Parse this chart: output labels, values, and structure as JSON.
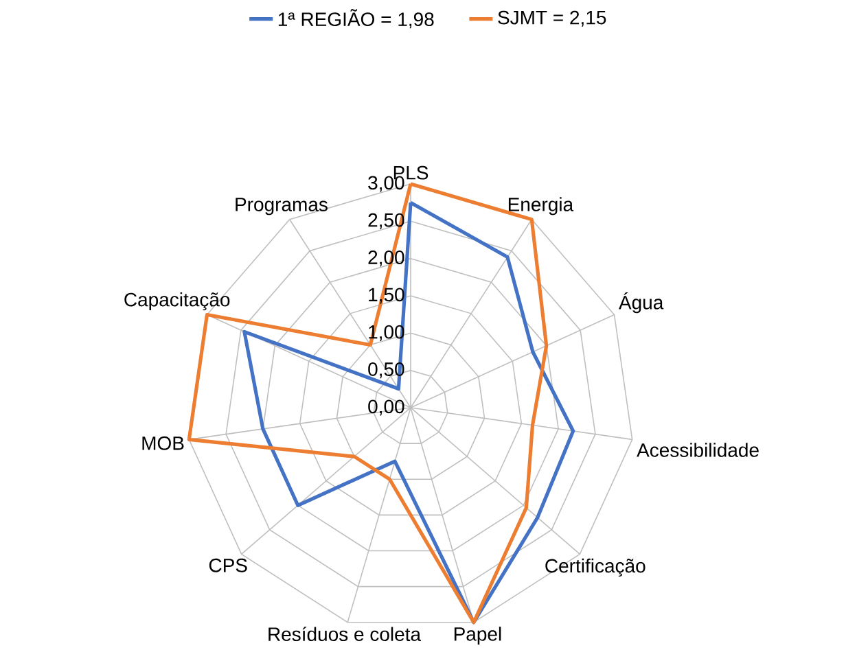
{
  "chart_data": {
    "type": "radar",
    "categories": [
      "PLS",
      "Energia",
      "Água",
      "Acessibilidade",
      "Certificação",
      "Papel",
      "Resíduos e coleta",
      "CPS",
      "MOB",
      "Capacitação",
      "Programas"
    ],
    "series": [
      {
        "name": "1ª REGIÃO = 1,98",
        "color": "#4472c4",
        "values": [
          2.75,
          2.4,
          1.8,
          2.2,
          2.25,
          3.0,
          0.75,
          2.0,
          2.0,
          2.45,
          0.3
        ]
      },
      {
        "name": "SJMT = 2,15",
        "color": "#ed7d31",
        "values": [
          3.0,
          3.0,
          2.0,
          1.65,
          2.05,
          3.0,
          1.0,
          1.0,
          3.0,
          3.0,
          1.0
        ]
      }
    ],
    "ylim": [
      0,
      3
    ],
    "yticks": [
      {
        "value": 0,
        "label": "0,00"
      },
      {
        "value": 0.5,
        "label": "0,50"
      },
      {
        "value": 1,
        "label": "1,00"
      },
      {
        "value": 1.5,
        "label": "1,50"
      },
      {
        "value": 2,
        "label": "2,00"
      },
      {
        "value": 2.5,
        "label": "2,50"
      },
      {
        "value": 3,
        "label": "3,00"
      }
    ],
    "grid": true,
    "legend": "top"
  }
}
